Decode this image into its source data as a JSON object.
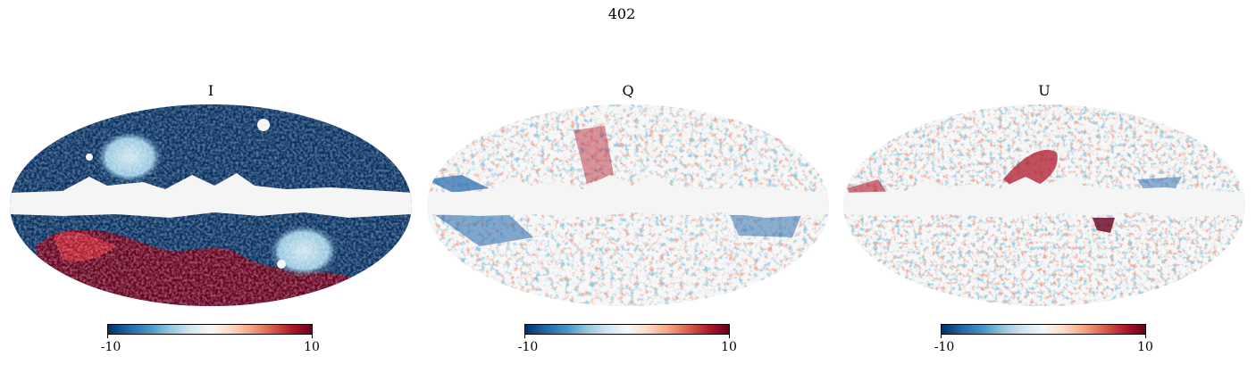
{
  "figure": {
    "suptitle": "402"
  },
  "colormap": {
    "stops": [
      "#053061",
      "#2166ac",
      "#4393c3",
      "#92c5de",
      "#d1e5f0",
      "#f7f7f7",
      "#fddbc7",
      "#f4a582",
      "#d6604d",
      "#b2182b",
      "#67001f"
    ],
    "mask_color": "#f5f5f5"
  },
  "panels": [
    {
      "title": "I",
      "colorbar": {
        "min_label": "-10",
        "max_label": "10",
        "range": [
          -10,
          10
        ]
      }
    },
    {
      "title": "Q",
      "colorbar": {
        "min_label": "-10",
        "max_label": "10",
        "range": [
          -10,
          10
        ]
      }
    },
    {
      "title": "U",
      "colorbar": {
        "min_label": "-10",
        "max_label": "10",
        "range": [
          -10,
          10
        ]
      }
    }
  ]
}
